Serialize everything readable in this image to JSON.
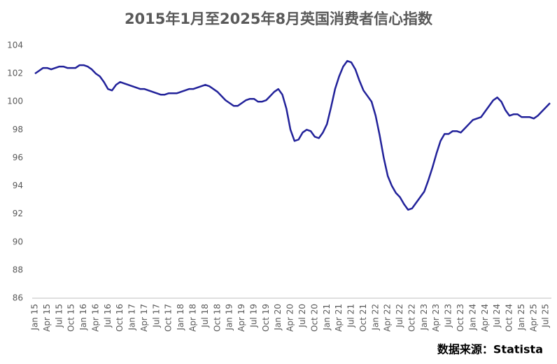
{
  "chart_data": {
    "type": "line",
    "title": "2015年1月至2025年8月英国消费者信心指数",
    "source": "数据来源：Statista",
    "categories": [
      "Jan 15",
      null,
      null,
      "Apr 15",
      null,
      null,
      "Jul 15",
      null,
      null,
      "Oct 15",
      null,
      null,
      "Jan 16",
      null,
      null,
      "Apr 16",
      null,
      null,
      "Jul 16",
      null,
      null,
      "Oct 16",
      null,
      null,
      "Jan 17",
      null,
      null,
      "Apr 17",
      null,
      null,
      "Jul 17",
      null,
      null,
      "Oct 17",
      null,
      null,
      "Jan 18",
      null,
      null,
      "Apr 18",
      null,
      null,
      "Jul 18",
      null,
      null,
      "Oct 18",
      null,
      null,
      "Jan 19",
      null,
      null,
      "Apr 19",
      null,
      null,
      "Jul 19",
      null,
      null,
      "Oct 19",
      null,
      null,
      "Jan 20",
      null,
      null,
      "Apr 20",
      null,
      null,
      "Jul 20",
      null,
      null,
      "Oct 20",
      null,
      null,
      "Jan 21",
      null,
      null,
      "Apr 21",
      null,
      null,
      "Jul 21",
      null,
      null,
      "Oct 21",
      null,
      null,
      "Jan 22",
      null,
      null,
      "Apr 22",
      null,
      null,
      "Jul 22",
      null,
      null,
      "Oct 22",
      null,
      null,
      "Jan 23",
      null,
      null,
      "Apr 23",
      null,
      null,
      "Jul 23",
      null,
      null,
      "Oct 23",
      null,
      null,
      "Jan 24",
      null,
      null,
      "Apr 24",
      null,
      null,
      "Jul 24",
      null,
      null,
      "Oct 24",
      null,
      null,
      "Jan 25",
      null,
      null,
      "Apr 25",
      null,
      null,
      "Jul 25",
      null
    ],
    "values": [
      102.0,
      102.2,
      102.4,
      102.4,
      102.3,
      102.4,
      102.5,
      102.5,
      102.4,
      102.4,
      102.4,
      102.6,
      102.6,
      102.5,
      102.3,
      102.0,
      101.8,
      101.4,
      100.9,
      100.8,
      101.2,
      101.4,
      101.3,
      101.2,
      101.1,
      101.0,
      100.9,
      100.9,
      100.8,
      100.7,
      100.6,
      100.5,
      100.5,
      100.6,
      100.6,
      100.6,
      100.7,
      100.8,
      100.9,
      100.9,
      101.0,
      101.1,
      101.2,
      101.1,
      100.9,
      100.7,
      100.4,
      100.1,
      99.9,
      99.7,
      99.7,
      99.9,
      100.1,
      100.2,
      100.2,
      100.0,
      100.0,
      100.1,
      100.4,
      100.7,
      100.9,
      100.5,
      99.5,
      98.0,
      97.2,
      97.3,
      97.8,
      98.0,
      97.9,
      97.5,
      97.4,
      97.8,
      98.4,
      99.6,
      100.9,
      101.8,
      102.5,
      102.9,
      102.8,
      102.3,
      101.5,
      100.8,
      100.4,
      100.0,
      99.0,
      97.6,
      96.0,
      94.7,
      94.0,
      93.5,
      93.2,
      92.7,
      92.3,
      92.4,
      92.8,
      93.2,
      93.6,
      94.4,
      95.3,
      96.3,
      97.2,
      97.7,
      97.7,
      97.9,
      97.9,
      97.8,
      98.1,
      98.4,
      98.7,
      98.8,
      98.9,
      99.3,
      99.7,
      100.1,
      100.3,
      100.0,
      99.4,
      99.0,
      99.1,
      99.1,
      98.9,
      98.9,
      98.9,
      98.8,
      99.0,
      99.3,
      99.6,
      99.9
    ],
    "color": "#22229a",
    "ylim": [
      86,
      104
    ],
    "yticks": [
      86,
      88,
      90,
      92,
      94,
      96,
      98,
      100,
      102,
      104
    ],
    "grid": false
  }
}
